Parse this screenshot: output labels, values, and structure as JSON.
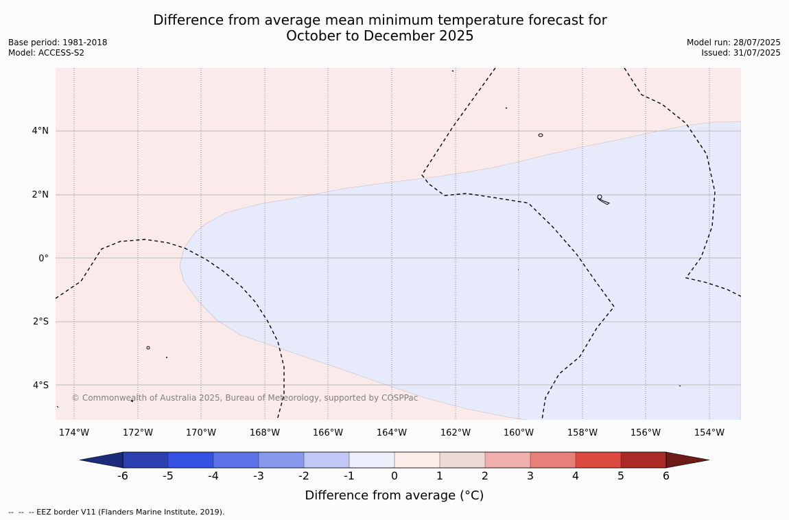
{
  "title": {
    "line1": "Difference from average mean minimum temperature forecast for",
    "line2": "October to December 2025"
  },
  "meta_left": {
    "base_period": "Base period: 1981-2018",
    "model": "Model: ACCESS-S2"
  },
  "meta_right": {
    "model_run": "Model run: 28/07/2025",
    "issued": "Issued: 31/07/2025"
  },
  "map": {
    "longitude_labels": [
      "174°W",
      "172°W",
      "170°W",
      "168°W",
      "166°W",
      "164°W",
      "162°W",
      "160°W",
      "158°W",
      "156°W",
      "154°W"
    ],
    "latitude_labels": [
      "4°N",
      "2°N",
      "0°",
      "2°S",
      "4°S"
    ],
    "copyright": "© Commonwealth of Australia 2025, Bureau of Meteorology, supported by COSPPac",
    "colors": {
      "warm_fill": "#fbeaea",
      "cool_fill": "#e7eafb"
    }
  },
  "colorbar": {
    "tick_labels": [
      "-6",
      "-5",
      "-4",
      "-3",
      "-2",
      "-1",
      "0",
      "1",
      "2",
      "3",
      "4",
      "5",
      "6"
    ],
    "colors": [
      "#1c2c7a",
      "#2b3fb1",
      "#3352e0",
      "#5b73e6",
      "#8797ec",
      "#c1c8f6",
      "#eceefb",
      "#fdeeec",
      "#eddad8",
      "#efafad",
      "#e8807a",
      "#dd4a42",
      "#ab2a26",
      "#6e1a17"
    ],
    "label": "Difference from average (°C)"
  },
  "footer": "--  --  -- EEZ border V11 (Flanders Marine Institute, 2019)."
}
